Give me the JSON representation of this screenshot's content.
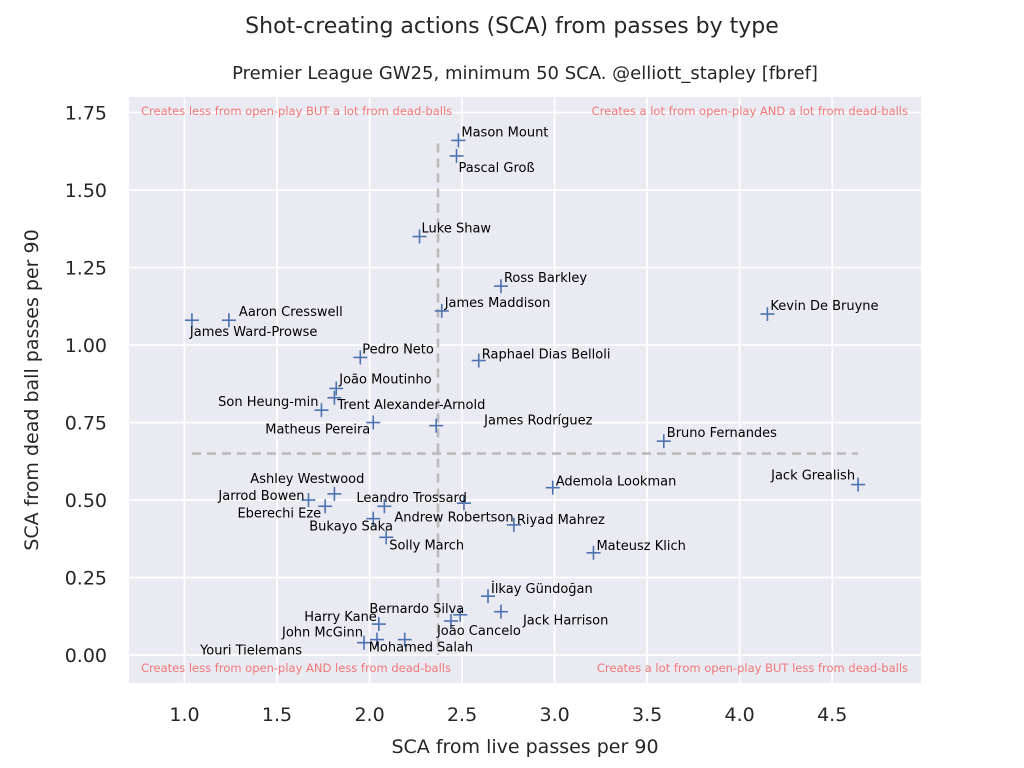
{
  "chart_data": {
    "type": "scatter",
    "title": "Shot-creating actions (SCA) from passes by type",
    "subtitle": "Premier League GW25, minimum 50 SCA. @elliott_stapley [fbref]",
    "xlabel": "SCA from live passes per 90",
    "ylabel": "SCA from dead ball passes per 90",
    "xlim": [
      0.7,
      4.98
    ],
    "ylim": [
      -0.09,
      1.8
    ],
    "xticks": [
      "1.0",
      "1.5",
      "2.0",
      "2.5",
      "3.0",
      "3.5",
      "4.0",
      "4.5"
    ],
    "yticks": [
      "0.00",
      "0.25",
      "0.50",
      "0.75",
      "1.00",
      "1.25",
      "1.50",
      "1.75"
    ],
    "grid": true,
    "marker": "+",
    "marker_color": "#4c72b0",
    "background_color": "#eaeaf2",
    "reference_lines": {
      "x_mean": 2.37,
      "y_mean": 0.65,
      "style": "dashed",
      "color": "#bbbbbb"
    },
    "quadrant_labels": {
      "top_left": "Creates less from open-play BUT a lot from dead-balls",
      "top_right": "Creates a lot from open-play AND a lot from dead-balls",
      "bottom_left": "Creates less from open-play AND less from dead-balls",
      "bottom_right": "Creates a lot from open-play BUT less from dead-balls",
      "color": "#f07878"
    },
    "points": [
      {
        "name": "Mason Mount",
        "x": 2.48,
        "y": 1.66
      },
      {
        "name": "Pascal Groß",
        "x": 2.47,
        "y": 1.61
      },
      {
        "name": "Luke Shaw",
        "x": 2.27,
        "y": 1.35
      },
      {
        "name": "Ross Barkley",
        "x": 2.71,
        "y": 1.19
      },
      {
        "name": "James Maddison",
        "x": 2.39,
        "y": 1.11
      },
      {
        "name": "Kevin De Bruyne",
        "x": 4.15,
        "y": 1.1
      },
      {
        "name": "Aaron Cresswell",
        "x": 1.24,
        "y": 1.08
      },
      {
        "name": "James Ward-Prowse",
        "x": 1.04,
        "y": 1.08
      },
      {
        "name": "Pedro Neto",
        "x": 1.95,
        "y": 0.96
      },
      {
        "name": "Raphael Dias Belloli",
        "x": 2.59,
        "y": 0.95
      },
      {
        "name": "João Moutinho",
        "x": 1.82,
        "y": 0.86
      },
      {
        "name": "Trent Alexander-Arnold",
        "x": 1.81,
        "y": 0.83
      },
      {
        "name": "Son Heung-min",
        "x": 1.74,
        "y": 0.79
      },
      {
        "name": "Matheus Pereira",
        "x": 2.02,
        "y": 0.75
      },
      {
        "name": "James Rodríguez",
        "x": 2.36,
        "y": 0.74
      },
      {
        "name": "Bruno Fernandes",
        "x": 3.59,
        "y": 0.69
      },
      {
        "name": "Ademola Lookman",
        "x": 2.99,
        "y": 0.54
      },
      {
        "name": "Jack Grealish",
        "x": 4.64,
        "y": 0.55
      },
      {
        "name": "Ashley Westwood",
        "x": 1.81,
        "y": 0.52
      },
      {
        "name": "Jarrod Bowen",
        "x": 1.67,
        "y": 0.5
      },
      {
        "name": "Eberechi Eze",
        "x": 1.76,
        "y": 0.48
      },
      {
        "name": "Leandro Trossard",
        "x": 2.51,
        "y": 0.49
      },
      {
        "name": "Andrew Robertson",
        "x": 2.08,
        "y": 0.48
      },
      {
        "name": "Bukayo Saka",
        "x": 2.02,
        "y": 0.44
      },
      {
        "name": "Riyad Mahrez",
        "x": 2.78,
        "y": 0.42
      },
      {
        "name": "Solly March",
        "x": 2.09,
        "y": 0.38
      },
      {
        "name": "Mateusz Klich",
        "x": 3.21,
        "y": 0.33
      },
      {
        "name": "İlkay Gündoğan",
        "x": 2.64,
        "y": 0.19
      },
      {
        "name": "Bernardo Silva",
        "x": 2.49,
        "y": 0.13
      },
      {
        "name": "Jack Harrison",
        "x": 2.71,
        "y": 0.14
      },
      {
        "name": "Harry Kane",
        "x": 2.05,
        "y": 0.1
      },
      {
        "name": "João Cancelo",
        "x": 2.44,
        "y": 0.11
      },
      {
        "name": "John McGinn",
        "x": 2.04,
        "y": 0.05
      },
      {
        "name": "Youri Tielemans",
        "x": 1.97,
        "y": 0.04
      },
      {
        "name": "Mohamed Salah",
        "x": 2.19,
        "y": 0.05
      }
    ]
  }
}
